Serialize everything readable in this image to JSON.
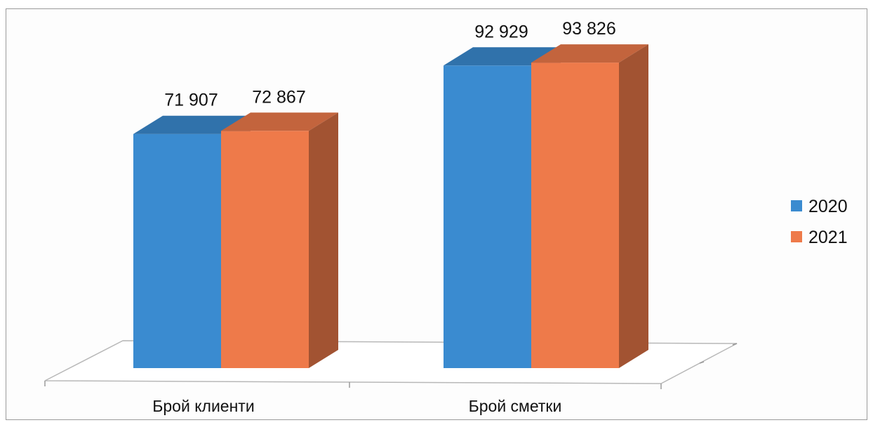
{
  "chart_data": {
    "type": "bar",
    "categories": [
      "Брой клиенти",
      "Брой сметки"
    ],
    "series": [
      {
        "name": "2020",
        "values": [
          71907,
          92929
        ],
        "labels": [
          "71 907",
          "92 929"
        ],
        "color": "#3a8bd0"
      },
      {
        "name": "2021",
        "values": [
          72867,
          93826
        ],
        "labels": [
          "72 867",
          "93 826"
        ],
        "color": "#ee7a4a"
      }
    ],
    "title": "",
    "xlabel": "",
    "ylabel": "",
    "ylim": [
      0,
      100000
    ],
    "grid": false,
    "legend": "right",
    "style": "3d-column"
  }
}
